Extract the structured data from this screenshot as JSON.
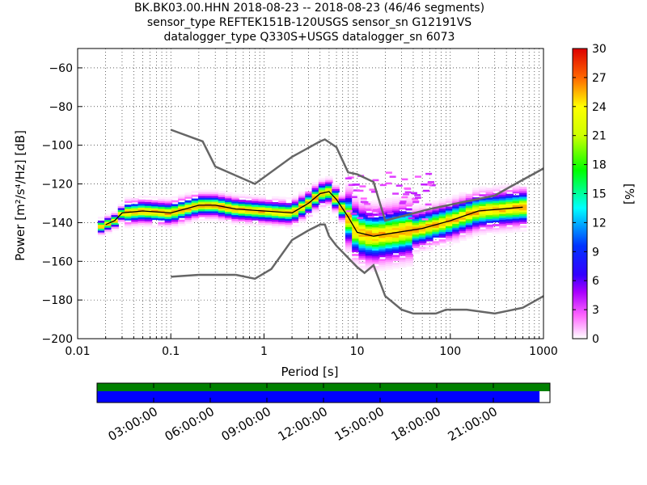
{
  "title": {
    "line1": "BK.BK03.00.HHN   2018-08-23 -- 2018-08-23  (46/46 segments)",
    "line2": "sensor_type REFTEK151B-120USGS sensor_sn G12191VS",
    "line3": "datalogger_type Q330S+USGS datalogger_sn 6073"
  },
  "colorbar": {
    "label": "[%]",
    "ticks": [
      0,
      3,
      6,
      9,
      12,
      15,
      18,
      21,
      24,
      27,
      30
    ]
  },
  "chart_data": {
    "type": "heatmap",
    "xlabel": "Period [s]",
    "ylabel": "Power [m²/s⁴/Hz] [dB]",
    "x_scale": "log",
    "xlim": [
      0.01,
      1000
    ],
    "ylim": [
      -200,
      -50
    ],
    "x_ticks": [
      "0.01",
      "0.1",
      "1",
      "10",
      "100",
      "1000"
    ],
    "y_ticks": [
      "−60",
      "−80",
      "−100",
      "−120",
      "−140",
      "−160",
      "−180",
      "−200"
    ],
    "grid": true,
    "color_range_percent": [
      0,
      30
    ],
    "series": [
      {
        "name": "",
        "color": "#666666",
        "x": [
          0.1,
          0.22,
          0.3,
          0.8,
          2,
          4,
          4.5,
          6,
          8,
          10,
          15,
          20,
          60,
          300,
          500,
          1000
        ],
        "values": [
          -92,
          -98,
          -111,
          -120,
          -106,
          -98,
          -97,
          -101,
          -114,
          -115,
          -119,
          -139,
          -133,
          -126,
          -120,
          -112
        ]
      },
      {
        "name": "",
        "color": "#666666",
        "x": [
          0.1,
          0.2,
          0.5,
          0.8,
          1.2,
          2,
          3,
          4,
          4.5,
          5,
          6,
          10,
          12,
          15,
          20,
          30,
          40,
          70,
          90,
          150,
          300,
          600,
          1000
        ],
        "values": [
          -168,
          -167,
          -167,
          -169,
          -164,
          -149,
          -144,
          -141,
          -141,
          -147,
          -152,
          -163,
          -166,
          -162,
          -178,
          -185,
          -187,
          -187,
          -185,
          -185,
          -187,
          -184,
          -178
        ]
      },
      {
        "name": "",
        "color": "#000000",
        "x": [
          0.02,
          0.025,
          0.03,
          0.05,
          0.1,
          0.2,
          0.3,
          0.5,
          1,
          2,
          3,
          4,
          5,
          6,
          8,
          10,
          15,
          20,
          50,
          100,
          200,
          600
        ],
        "values": [
          -141,
          -139,
          -135,
          -134,
          -135,
          -131,
          -131,
          -133,
          -134,
          -135,
          -130,
          -125,
          -124,
          -128,
          -137,
          -145,
          -147,
          -146,
          -143,
          -139,
          -134,
          -132
        ]
      }
    ]
  },
  "time_axis": {
    "labels": [
      "03:00:00",
      "06:00:00",
      "09:00:00",
      "12:00:00",
      "15:00:00",
      "18:00:00",
      "21:00:00"
    ],
    "coverage_fraction": 0.977,
    "colors": {
      "top_bar": "#008000",
      "bottom_bar": "#0000ff"
    }
  }
}
